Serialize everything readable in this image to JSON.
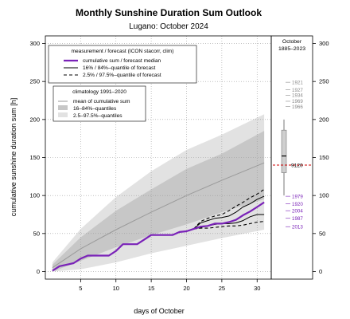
{
  "chart_data": {
    "type": "line",
    "title": "Monthly Sunshine Duration Sum Outlook",
    "subtitle": "Lugano: October 2024",
    "xlabel": "days of October",
    "ylabel": "cumulative sunshine duration sum [h]",
    "xlim": [
      0,
      32
    ],
    "ylim": [
      0,
      300
    ],
    "xticks": [
      "5",
      "10",
      "15",
      "20",
      "25",
      "30"
    ],
    "yticks": [
      "0",
      "50",
      "100",
      "150",
      "200",
      "250",
      "300"
    ],
    "grid": true,
    "legend_measurement": {
      "title": "measurement / forecast (ICON stacorr, clim)",
      "entries": [
        "cumulative sum / forecast median",
        "16% / 84%–quantile of forecast",
        "2.5% / 97.5%–quantile of forecast"
      ]
    },
    "legend_climatology": {
      "title": "climatology 1991–2020",
      "entries": [
        "mean of cumulative sum",
        "16–84%–quantiles",
        "2.5–97.5%–quantiles"
      ]
    },
    "climatology": {
      "days": [
        1,
        5,
        10,
        15,
        20,
        25,
        31
      ],
      "mean": [
        5,
        30,
        55,
        78,
        100,
        120,
        143
      ],
      "q16": [
        0,
        14,
        32,
        48,
        62,
        78,
        95
      ],
      "q84": [
        9,
        45,
        80,
        108,
        135,
        155,
        185
      ],
      "q025": [
        0,
        3,
        12,
        24,
        34,
        44,
        55
      ],
      "q975": [
        12,
        56,
        98,
        132,
        160,
        180,
        207
      ]
    },
    "series": [
      {
        "name": "cumulative sum / forecast median",
        "x": [
          1,
          2,
          3,
          4,
          5,
          6,
          7,
          8,
          9,
          10,
          11,
          12,
          13,
          14,
          15,
          16,
          17,
          18,
          19,
          20,
          21,
          22,
          23,
          24,
          25,
          26,
          27,
          28,
          29,
          30,
          31
        ],
        "y": [
          1,
          7,
          9,
          11,
          17,
          21,
          21,
          21,
          21,
          27,
          36,
          36,
          36,
          42,
          48,
          48,
          48,
          48,
          52,
          53,
          56,
          59,
          60,
          63,
          63,
          65,
          68,
          74,
          79,
          85,
          91
        ]
      },
      {
        "name": "forecast 16% quantile",
        "x": [
          21,
          22,
          23,
          24,
          25,
          26,
          27,
          28,
          29,
          30,
          31
        ],
        "y": [
          56,
          58,
          60,
          62,
          63,
          63,
          64,
          67,
          72,
          75,
          75
        ]
      },
      {
        "name": "forecast 84% quantile",
        "x": [
          21,
          22,
          23,
          24,
          25,
          26,
          27,
          28,
          29,
          30,
          31
        ],
        "y": [
          56,
          64,
          67,
          70,
          71,
          73,
          78,
          85,
          89,
          95,
          99
        ]
      },
      {
        "name": "forecast 2.5% quantile",
        "x": [
          21,
          22,
          23,
          24,
          25,
          26,
          27,
          28,
          29,
          30,
          31
        ],
        "y": [
          56,
          57,
          57,
          58,
          59,
          60,
          60,
          61,
          63,
          65,
          66
        ]
      },
      {
        "name": "forecast 97.5% quantile",
        "x": [
          21,
          22,
          23,
          24,
          25,
          26,
          27,
          28,
          29,
          30,
          31
        ],
        "y": [
          56,
          66,
          70,
          73,
          75,
          80,
          86,
          91,
          97,
          102,
          108
        ]
      }
    ],
    "side_panel": {
      "title_lines": [
        "October",
        "1885–2023"
      ],
      "box": {
        "q025": 100,
        "q25": 130,
        "median": 152,
        "q75": 186,
        "q975": 200
      },
      "current_year_label": "9120",
      "current_year_value": 140,
      "years_high": [
        {
          "year": "1921",
          "value": 249
        },
        {
          "year": "1927",
          "value": 239
        },
        {
          "year": "1934",
          "value": 232
        },
        {
          "year": "1969",
          "value": 224
        },
        {
          "year": "1966",
          "value": 217
        }
      ],
      "years_low": [
        {
          "year": "1979",
          "value": 99
        },
        {
          "year": "1920",
          "value": 89
        },
        {
          "year": "2004",
          "value": 80
        },
        {
          "year": "1987",
          "value": 70
        },
        {
          "year": "2013",
          "value": 59
        }
      ]
    },
    "colors": {
      "median": "#7a22b8",
      "purple_text": "#7a22b8",
      "band_outer": "#e2e2e2",
      "band_inner": "#c7c7c7",
      "clim_mean": "#9a9a9a",
      "current_year_marker": "#cc0000",
      "high_years_text": "#888888"
    }
  }
}
